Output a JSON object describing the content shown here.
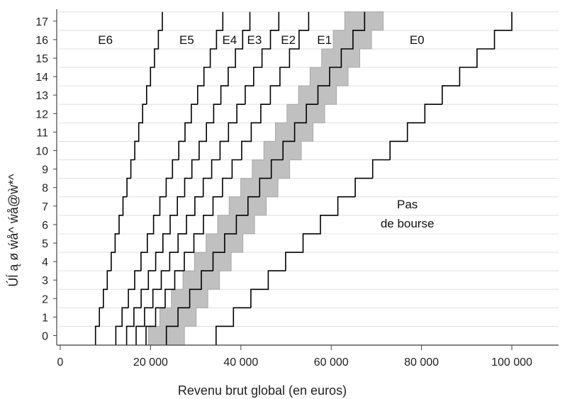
{
  "chart_data": {
    "type": "line",
    "xlabel": "Revenu brut global (en euros)",
    "ylabel": "Úĺ ą ø ẃå^ ẃå@ẁ*^",
    "xlim": [
      0,
      100000
    ],
    "ylim": [
      0,
      17
    ],
    "x_ticks": [
      0,
      20000,
      40000,
      60000,
      80000,
      100000
    ],
    "x_tick_labels": [
      "0",
      "20 000",
      "40 000",
      "60 000",
      "80 000",
      "100 000"
    ],
    "y_ticks": [
      0,
      1,
      2,
      3,
      4,
      5,
      6,
      7,
      8,
      9,
      10,
      11,
      12,
      13,
      14,
      15,
      16,
      17
    ],
    "y_tick_labels": [
      "0",
      "1",
      "2",
      "3",
      "4",
      "5",
      "6",
      "7",
      "8",
      "9",
      "10",
      "11",
      "12",
      "13",
      "14",
      "15",
      "16",
      "17"
    ],
    "grid": "horizontal",
    "series": [
      {
        "start": 7800,
        "end": 22600
      },
      {
        "start": 12300,
        "end": 36000
      },
      {
        "start": 14700,
        "end": 42000
      },
      {
        "start": 16800,
        "end": 48400
      },
      {
        "start": 19000,
        "end": 55000
      },
      {
        "start": 23500,
        "end": 67400
      },
      {
        "start": 34500,
        "end": 100000
      }
    ],
    "band": {
      "start_low": 19500,
      "start_high": 27500,
      "end_low": 63000,
      "end_high": 71500
    },
    "zone_labels": [
      {
        "text": "E6",
        "x": 10000,
        "y": 16
      },
      {
        "text": "E5",
        "x": 28000,
        "y": 16
      },
      {
        "text": "E4",
        "x": 37500,
        "y": 16
      },
      {
        "text": "E3",
        "x": 43000,
        "y": 16
      },
      {
        "text": "E2",
        "x": 50500,
        "y": 16
      },
      {
        "text": "E1",
        "x": 58500,
        "y": 16
      },
      {
        "text": "E0",
        "x": 79000,
        "y": 16
      }
    ],
    "annotation": {
      "line1": "Pas",
      "line2": "de bourse",
      "x": 85500,
      "y": 6.8
    },
    "colors": {
      "line": "#000000",
      "band": "#c0c0c0",
      "band_edge": "#a8a8a8",
      "grid": "#e0e0e0",
      "axis": "#444444"
    }
  }
}
